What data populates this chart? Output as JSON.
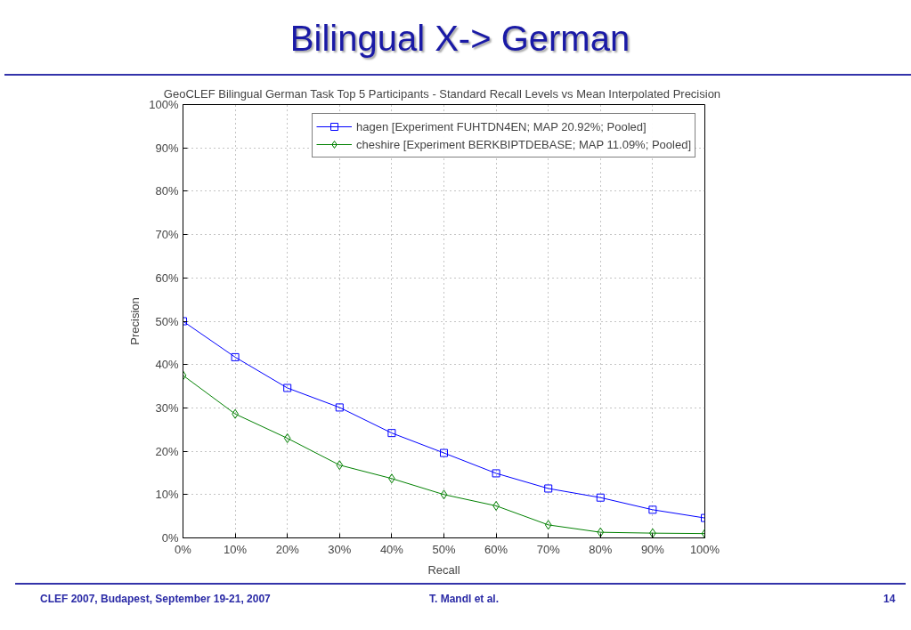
{
  "chart_data": {
    "type": "line",
    "title": "Bilingual X-> German",
    "subtitle": "GeoCLEF Bilingual German Task Top 5 Participants -  Standard Recall Levels vs Mean Interpolated Precision",
    "xlabel": "Recall",
    "ylabel": "Precision",
    "x": [
      0,
      10,
      20,
      30,
      40,
      50,
      60,
      70,
      80,
      90,
      100
    ],
    "series": [
      {
        "name": "hagen [Experiment FUHTDN4EN; MAP 20.92%; Pooled]",
        "color": "#0000ff",
        "marker": "square",
        "values": [
          50,
          41.7,
          34.6,
          30.1,
          24.2,
          19.6,
          14.9,
          11.4,
          9.3,
          6.5,
          4.6
        ]
      },
      {
        "name": "cheshire [Experiment BERKBIPTDEBASE; MAP 11.09%; Pooled]",
        "color": "#008000",
        "marker": "diamond",
        "values": [
          37.5,
          28.6,
          23.0,
          16.8,
          13.7,
          10.0,
          7.4,
          3.0,
          1.3,
          1.1,
          1.0
        ]
      }
    ],
    "xlim": [
      0,
      100
    ],
    "ylim": [
      0,
      100
    ],
    "xticks": [
      {
        "value": 0,
        "label": "0%"
      },
      {
        "value": 10,
        "label": "10%"
      },
      {
        "value": 20,
        "label": "20%"
      },
      {
        "value": 30,
        "label": "30%"
      },
      {
        "value": 40,
        "label": "40%"
      },
      {
        "value": 50,
        "label": "50%"
      },
      {
        "value": 60,
        "label": "60%"
      },
      {
        "value": 70,
        "label": "70%"
      },
      {
        "value": 80,
        "label": "80%"
      },
      {
        "value": 90,
        "label": "90%"
      },
      {
        "value": 100,
        "label": "100%"
      }
    ],
    "yticks": [
      {
        "value": 0,
        "label": "0%"
      },
      {
        "value": 10,
        "label": "10%"
      },
      {
        "value": 20,
        "label": "20%"
      },
      {
        "value": 30,
        "label": "30%"
      },
      {
        "value": 40,
        "label": "40%"
      },
      {
        "value": 50,
        "label": "50%"
      },
      {
        "value": 60,
        "label": "60%"
      },
      {
        "value": 70,
        "label": "70%"
      },
      {
        "value": 80,
        "label": "80%"
      },
      {
        "value": 90,
        "label": "90%"
      },
      {
        "value": 100,
        "label": "100%"
      }
    ],
    "grid": true,
    "legend": "top right",
    "line_style": "solid",
    "annotations": [
      "CLEF 2007, Budapest, September 19-21, 2007",
      "T. Mandl et al.",
      "14"
    ]
  }
}
